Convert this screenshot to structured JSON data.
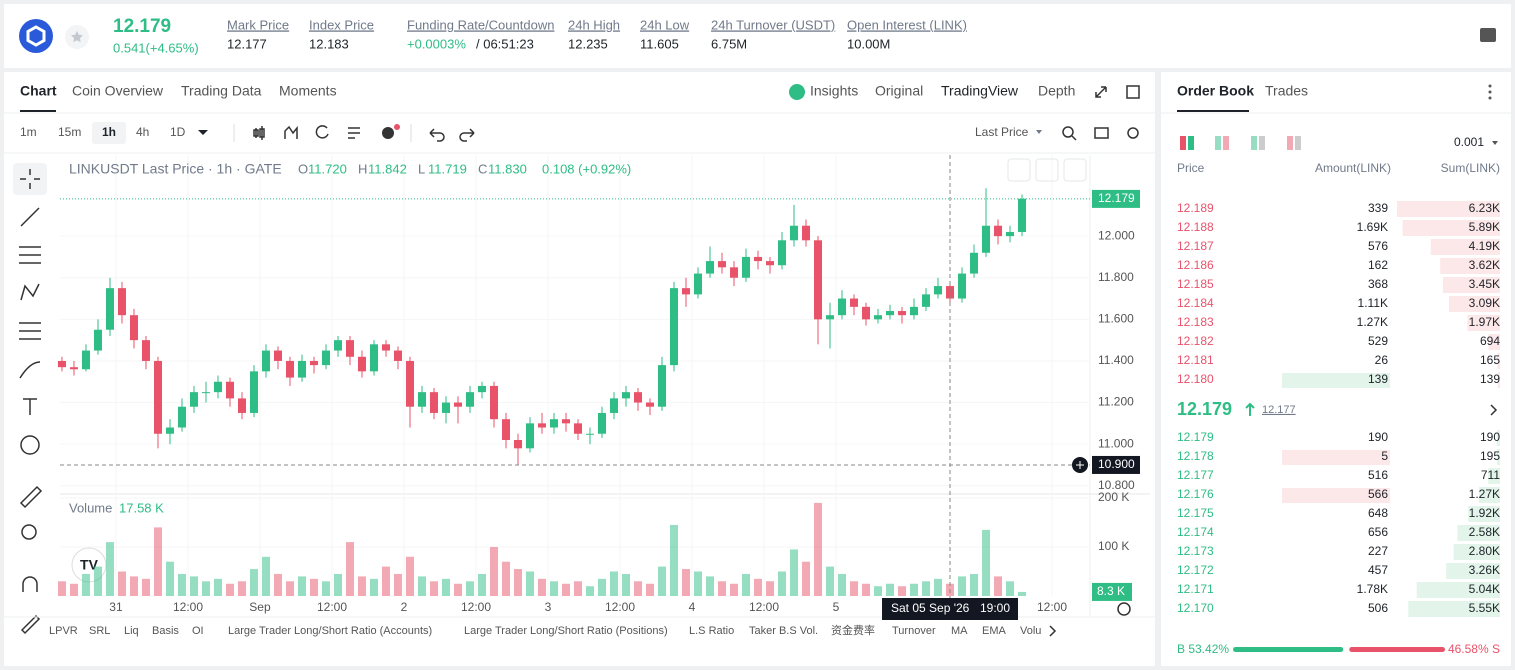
{
  "header": {
    "price": "12.179",
    "change": "0.541(+4.65%)",
    "stats": [
      {
        "label": "Mark Price",
        "value": "12.177"
      },
      {
        "label": "Index Price",
        "value": "12.183"
      },
      {
        "label": "Funding Rate/Countdown",
        "value": "+0.0003%",
        "extra": "/ 06:51:23"
      },
      {
        "label": "24h High",
        "value": "12.235"
      },
      {
        "label": "24h Low",
        "value": "11.605"
      },
      {
        "label": "24h Turnover (USDT)",
        "value": "6.75M"
      },
      {
        "label": "Open Interest (LINK)",
        "value": "10.00M"
      }
    ]
  },
  "tabs": [
    "Chart",
    "Coin Overview",
    "Trading Data",
    "Moments"
  ],
  "view_tabs": [
    "Insights",
    "Original",
    "TradingView",
    "Depth"
  ],
  "intervals": [
    "1m",
    "15m",
    "1h",
    "4h",
    "1D"
  ],
  "price_type": "Last Price",
  "indicators": [
    "LPVR",
    "SRL",
    "Liq",
    "Basis",
    "OI",
    "Large Trader Long/Short Ratio (Accounts)",
    "Large Trader Long/Short Ratio (Positions)",
    "L.S Ratio",
    "Taker B.S Vol.",
    "资金费率",
    "Turnover",
    "MA",
    "EMA",
    "Volu"
  ],
  "chart_data": {
    "type": "candlestick",
    "title": "LINKUSDT Last Price · 1h · GATE",
    "legend": [
      {
        "key": "O",
        "value": "11.720"
      },
      {
        "key": "H",
        "value": "11.842"
      },
      {
        "key": "L",
        "value": "11.719"
      },
      {
        "key": "C",
        "value": "11.830"
      },
      {
        "key": "",
        "value": "0.108 (+0.92%)"
      }
    ],
    "up_color": "#2ebd85",
    "down_color": "#e8536a",
    "x": [
      0,
      2,
      4,
      6,
      8,
      10,
      12,
      14,
      16,
      18,
      20,
      22,
      24,
      26,
      28,
      30,
      32,
      34,
      36,
      38,
      40,
      42,
      44,
      46,
      48,
      50,
      52,
      54,
      56,
      58,
      60,
      62,
      64,
      66,
      68,
      70,
      72,
      74,
      76,
      78,
      80,
      82,
      84,
      86,
      88,
      90,
      92,
      94,
      96,
      98,
      100,
      102,
      104,
      106,
      108,
      110,
      112,
      114,
      116,
      118,
      120,
      122,
      124,
      126,
      128,
      130,
      132,
      134,
      136,
      138,
      140,
      142,
      144,
      146,
      148,
      150,
      152,
      154,
      156,
      158,
      160
    ],
    "xlim": [
      -0.33,
      171.33
    ],
    "xticks": [
      {
        "value": 9,
        "label": "31"
      },
      {
        "value": 21,
        "label": "12:00"
      },
      {
        "value": 33,
        "label": "Sep"
      },
      {
        "value": 45,
        "label": "12:00"
      },
      {
        "value": 57,
        "label": "2"
      },
      {
        "value": 69,
        "label": "12:00"
      },
      {
        "value": 81,
        "label": "3"
      },
      {
        "value": 93,
        "label": "12:00"
      },
      {
        "value": 105,
        "label": "4"
      },
      {
        "value": 117,
        "label": "12:00"
      },
      {
        "value": 129,
        "label": "5"
      },
      {
        "value": 165,
        "label": "12:00"
      }
    ],
    "candles": [
      [
        11.4,
        11.42,
        11.35,
        11.37
      ],
      [
        11.37,
        11.4,
        11.33,
        11.36
      ],
      [
        11.36,
        11.48,
        11.35,
        11.45
      ],
      [
        11.45,
        11.6,
        11.43,
        11.55
      ],
      [
        11.55,
        11.8,
        11.52,
        11.75
      ],
      [
        11.75,
        11.78,
        11.58,
        11.62
      ],
      [
        11.62,
        11.65,
        11.46,
        11.5
      ],
      [
        11.5,
        11.52,
        11.36,
        11.4
      ],
      [
        11.4,
        11.42,
        10.98,
        11.05
      ],
      [
        11.05,
        11.12,
        11.0,
        11.08
      ],
      [
        11.08,
        11.22,
        11.06,
        11.18
      ],
      [
        11.18,
        11.28,
        11.15,
        11.25
      ],
      [
        11.25,
        11.3,
        11.2,
        11.25
      ],
      [
        11.25,
        11.33,
        11.22,
        11.3
      ],
      [
        11.3,
        11.32,
        11.18,
        11.22
      ],
      [
        11.22,
        11.25,
        11.12,
        11.15
      ],
      [
        11.15,
        11.38,
        11.13,
        11.35
      ],
      [
        11.35,
        11.48,
        11.32,
        11.45
      ],
      [
        11.45,
        11.47,
        11.36,
        11.4
      ],
      [
        11.4,
        11.42,
        11.28,
        11.32
      ],
      [
        11.32,
        11.43,
        11.3,
        11.4
      ],
      [
        11.4,
        11.42,
        11.34,
        11.38
      ],
      [
        11.38,
        11.48,
        11.36,
        11.45
      ],
      [
        11.45,
        11.52,
        11.42,
        11.5
      ],
      [
        11.5,
        11.52,
        11.38,
        11.42
      ],
      [
        11.42,
        11.45,
        11.32,
        11.35
      ],
      [
        11.35,
        11.5,
        11.33,
        11.48
      ],
      [
        11.48,
        11.5,
        11.42,
        11.45
      ],
      [
        11.45,
        11.47,
        11.36,
        11.4
      ],
      [
        11.4,
        11.42,
        11.08,
        11.18
      ],
      [
        11.18,
        11.28,
        11.15,
        11.25
      ],
      [
        11.25,
        11.27,
        11.12,
        11.15
      ],
      [
        11.15,
        11.23,
        11.1,
        11.2
      ],
      [
        11.2,
        11.23,
        11.1,
        11.18
      ],
      [
        11.18,
        11.28,
        11.15,
        11.25
      ],
      [
        11.25,
        11.3,
        11.22,
        11.28
      ],
      [
        11.28,
        11.3,
        11.08,
        11.12
      ],
      [
        11.12,
        11.15,
        10.98,
        11.02
      ],
      [
        11.02,
        11.05,
        10.9,
        10.98
      ],
      [
        10.98,
        11.13,
        10.96,
        11.1
      ],
      [
        11.1,
        11.15,
        11.05,
        11.08
      ],
      [
        11.08,
        11.15,
        11.05,
        11.12
      ],
      [
        11.12,
        11.15,
        11.06,
        11.1
      ],
      [
        11.1,
        11.12,
        11.02,
        11.05
      ],
      [
        11.05,
        11.08,
        11.0,
        11.05
      ],
      [
        11.05,
        11.18,
        11.03,
        11.15
      ],
      [
        11.15,
        11.25,
        11.12,
        11.22
      ],
      [
        11.22,
        11.28,
        11.18,
        11.25
      ],
      [
        11.25,
        11.27,
        11.16,
        11.2
      ],
      [
        11.2,
        11.22,
        11.14,
        11.18
      ],
      [
        11.18,
        11.42,
        11.16,
        11.38
      ],
      [
        11.38,
        11.78,
        11.35,
        11.75
      ],
      [
        11.75,
        11.8,
        11.66,
        11.72
      ],
      [
        11.72,
        11.85,
        11.7,
        11.82
      ],
      [
        11.82,
        11.95,
        11.8,
        11.88
      ],
      [
        11.88,
        11.92,
        11.82,
        11.85
      ],
      [
        11.85,
        11.88,
        11.76,
        11.8
      ],
      [
        11.8,
        11.94,
        11.78,
        11.9
      ],
      [
        11.9,
        11.93,
        11.84,
        11.88
      ],
      [
        11.88,
        11.9,
        11.82,
        11.86
      ],
      [
        11.86,
        12.02,
        11.84,
        11.98
      ],
      [
        11.98,
        12.15,
        11.95,
        12.05
      ],
      [
        12.05,
        12.08,
        11.95,
        11.98
      ],
      [
        11.98,
        12.0,
        11.48,
        11.6
      ],
      [
        11.6,
        11.68,
        11.46,
        11.62
      ],
      [
        11.62,
        11.74,
        11.6,
        11.7
      ],
      [
        11.7,
        11.72,
        11.62,
        11.66
      ],
      [
        11.66,
        11.68,
        11.57,
        11.6
      ],
      [
        11.6,
        11.65,
        11.58,
        11.62
      ],
      [
        11.62,
        11.67,
        11.6,
        11.64
      ],
      [
        11.64,
        11.66,
        11.58,
        11.62
      ],
      [
        11.62,
        11.7,
        11.6,
        11.66
      ],
      [
        11.66,
        11.75,
        11.64,
        11.72
      ],
      [
        11.72,
        11.8,
        11.7,
        11.76
      ],
      [
        11.76,
        11.78,
        11.68,
        11.7
      ],
      [
        11.7,
        11.85,
        11.68,
        11.82
      ],
      [
        11.82,
        11.96,
        11.8,
        11.92
      ],
      [
        11.92,
        12.23,
        11.9,
        12.05
      ],
      [
        12.05,
        12.08,
        11.96,
        12.0
      ],
      [
        12.0,
        12.05,
        11.97,
        12.02
      ],
      [
        12.02,
        12.2,
        12.0,
        12.18
      ]
    ],
    "ylim": [
      10.77,
      12.39
    ],
    "yticks": [
      {
        "value": 12,
        "label": "12.000"
      },
      {
        "value": 11.8,
        "label": "11.800"
      },
      {
        "value": 11.6,
        "label": "11.600"
      },
      {
        "value": 11.4,
        "label": "11.400"
      },
      {
        "value": 11.2,
        "label": "11.200"
      },
      {
        "value": 11,
        "label": "11.000"
      },
      {
        "value": 10.8,
        "label": "10.800"
      }
    ],
    "last_price": 12.179,
    "crosshair": {
      "x": 148,
      "y": 10.9,
      "y_label": "10.900",
      "x_label": "Sat 05 Sep '26",
      "x_time": "19:00"
    },
    "volume_title": "Volume",
    "volume_value": "17.58 K",
    "volumes": [
      30,
      25,
      45,
      60,
      110,
      50,
      40,
      35,
      140,
      70,
      45,
      40,
      30,
      35,
      25,
      30,
      55,
      80,
      45,
      30,
      40,
      35,
      30,
      45,
      110,
      40,
      35,
      60,
      45,
      80,
      40,
      30,
      35,
      25,
      30,
      45,
      100,
      70,
      55,
      50,
      35,
      30,
      25,
      30,
      20,
      35,
      50,
      45,
      30,
      25,
      60,
      145,
      55,
      50,
      40,
      30,
      25,
      45,
      35,
      30,
      50,
      95,
      70,
      190,
      60,
      45,
      30,
      25,
      20,
      25,
      20,
      25,
      30,
      35,
      25,
      40,
      45,
      135,
      40,
      30,
      8.3
    ],
    "volume_last_label": "8.3 K",
    "vlim": [
      0,
      200
    ],
    "vticks": [
      {
        "value": 200,
        "label": "200 K"
      },
      {
        "value": 100,
        "label": "100 K"
      }
    ]
  },
  "order_book": {
    "tabs": [
      "Order Book",
      "Trades"
    ],
    "precision": "0.001",
    "columns": [
      "Price",
      "Amount(LINK)",
      "Sum(LINK)"
    ],
    "asks": [
      {
        "price": "12.189",
        "amount": "339",
        "sum": 6230,
        "sum_label": "6.23K"
      },
      {
        "price": "12.188",
        "amount": "1.69K",
        "sum": 5890,
        "sum_label": "5.89K"
      },
      {
        "price": "12.187",
        "amount": "576",
        "sum": 4190,
        "sum_label": "4.19K"
      },
      {
        "price": "12.186",
        "amount": "162",
        "sum": 3620,
        "sum_label": "3.62K"
      },
      {
        "price": "12.185",
        "amount": "368",
        "sum": 3450,
        "sum_label": "3.45K"
      },
      {
        "price": "12.184",
        "amount": "1.11K",
        "sum": 3090,
        "sum_label": "3.09K"
      },
      {
        "price": "12.183",
        "amount": "1.27K",
        "sum": 1970,
        "sum_label": "1.97K"
      },
      {
        "price": "12.182",
        "amount": "529",
        "sum": 694
      },
      {
        "price": "12.181",
        "amount": "26",
        "sum": 165
      },
      {
        "price": "12.180",
        "amount": "139",
        "sum": 139
      }
    ],
    "mid_price": "12.179",
    "mark_price": "12.177",
    "bids": [
      {
        "price": "12.179",
        "amount": "190",
        "sum": 190
      },
      {
        "price": "12.178",
        "amount": "5",
        "sum": 195
      },
      {
        "price": "12.177",
        "amount": "516",
        "sum": 711
      },
      {
        "price": "12.176",
        "amount": "566",
        "sum": 1270,
        "sum_label": "1.27K"
      },
      {
        "price": "12.175",
        "amount": "648",
        "sum": 1920,
        "sum_label": "1.92K"
      },
      {
        "price": "12.174",
        "amount": "656",
        "sum": 2580,
        "sum_label": "2.58K"
      },
      {
        "price": "12.173",
        "amount": "227",
        "sum": 2800,
        "sum_label": "2.80K"
      },
      {
        "price": "12.172",
        "amount": "457",
        "sum": 3260,
        "sum_label": "3.26K"
      },
      {
        "price": "12.171",
        "amount": "1.78K",
        "sum": 5040,
        "sum_label": "5.04K"
      },
      {
        "price": "12.170",
        "amount": "506",
        "sum": 5550,
        "sum_label": "5.55K"
      }
    ],
    "buy_ratio": 53.42,
    "buy_label": "B 53.42%",
    "sell_ratio": 46.58,
    "sell_label": "46.58% S"
  }
}
